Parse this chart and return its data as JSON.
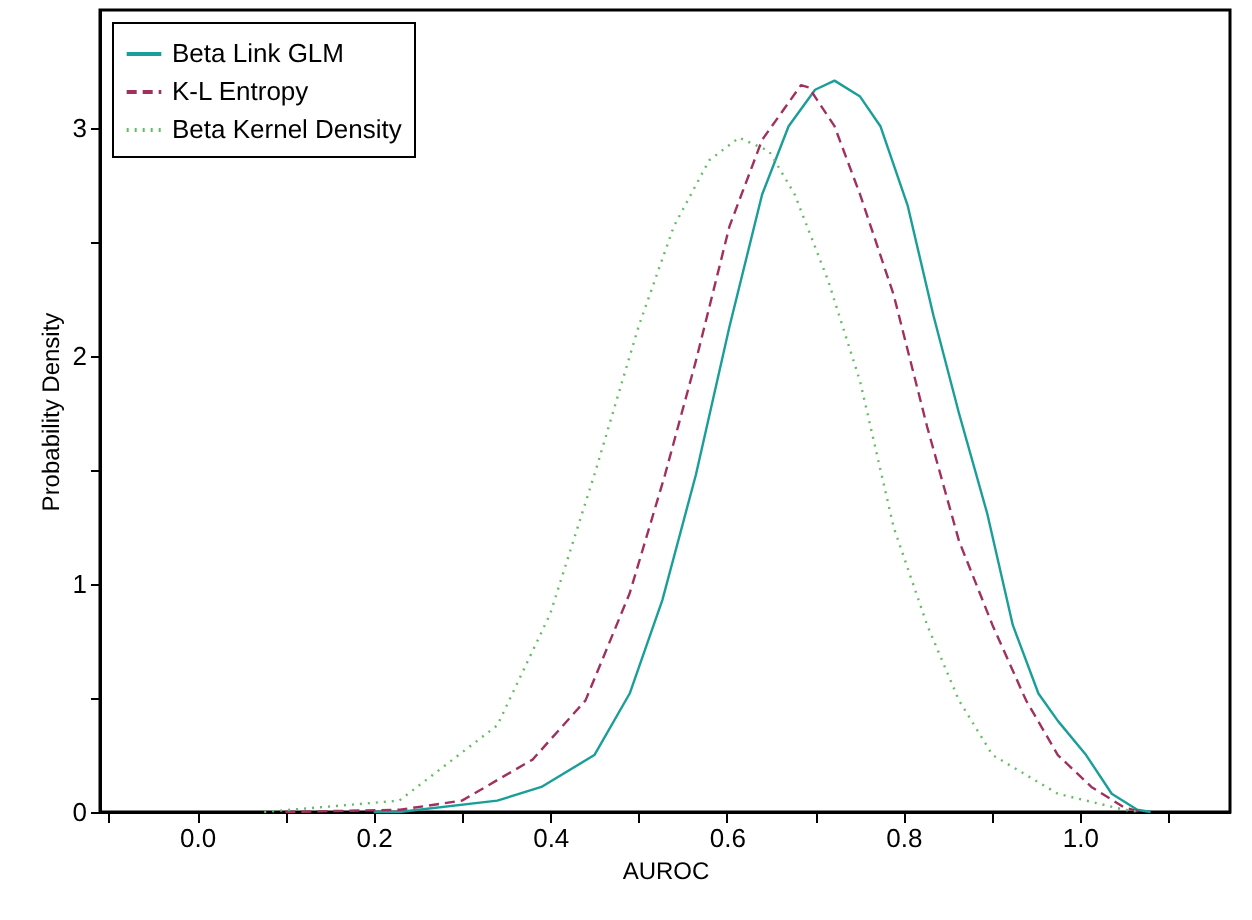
{
  "chart_data": {
    "type": "line",
    "xlabel": "AUROC",
    "ylabel": "Probability Density",
    "xlim": [
      -0.11,
      1.17
    ],
    "ylim": [
      0,
      3.52
    ],
    "xticks": [
      {
        "value": -0.1,
        "label": null
      },
      {
        "value": 0,
        "label": "0.0"
      },
      {
        "value": 0.1,
        "label": null
      },
      {
        "value": 0.2,
        "label": "0.2"
      },
      {
        "value": 0.3,
        "label": null
      },
      {
        "value": 0.4,
        "label": "0.4"
      },
      {
        "value": 0.5,
        "label": null
      },
      {
        "value": 0.6,
        "label": "0.6"
      },
      {
        "value": 0.7,
        "label": null
      },
      {
        "value": 0.8,
        "label": "0.8"
      },
      {
        "value": 0.9,
        "label": null
      },
      {
        "value": 1,
        "label": "1.0"
      },
      {
        "value": 1.1,
        "label": null
      }
    ],
    "yticks": [
      {
        "value": 0,
        "label": "0"
      },
      {
        "value": 0.5,
        "label": null
      },
      {
        "value": 1,
        "label": "1"
      },
      {
        "value": 1.5,
        "label": null
      },
      {
        "value": 2,
        "label": "2"
      },
      {
        "value": 2.5,
        "label": null
      },
      {
        "value": 3,
        "label": "3"
      }
    ],
    "grid": false,
    "legend": "top left",
    "marker": "none",
    "series": [
      {
        "name": "Beta Link GLM",
        "color": "#1a9e9a",
        "line_style": "solid",
        "x": [
          0.2,
          0.229,
          0.34,
          0.39,
          0.45,
          0.49,
          0.527,
          0.565,
          0.603,
          0.64,
          0.67,
          0.7,
          0.722,
          0.751,
          0.774,
          0.805,
          0.834,
          0.863,
          0.895,
          0.924,
          0.953,
          0.975,
          1.007,
          1.036,
          1.065,
          1.08
        ],
        "values": [
          0,
          0,
          0.05,
          0.11,
          0.25,
          0.52,
          0.93,
          1.48,
          2.13,
          2.71,
          3.01,
          3.17,
          3.21,
          3.14,
          3.01,
          2.66,
          2.18,
          1.75,
          1.31,
          0.82,
          0.52,
          0.4,
          0.25,
          0.08,
          0.01,
          0
        ]
      },
      {
        "name": "K-L Entropy",
        "color": "#a0305e",
        "line_style": "dashed",
        "x": [
          0.1,
          0.23,
          0.3,
          0.38,
          0.44,
          0.49,
          0.53,
          0.565,
          0.603,
          0.64,
          0.684,
          0.693,
          0.722,
          0.751,
          0.789,
          0.827,
          0.863,
          0.901,
          0.939,
          0.975,
          1.013,
          1.05,
          1.07
        ],
        "values": [
          0,
          0.01,
          0.05,
          0.23,
          0.49,
          0.96,
          1.48,
          1.98,
          2.57,
          2.95,
          3.19,
          3.18,
          3.01,
          2.71,
          2.27,
          1.69,
          1.19,
          0.82,
          0.49,
          0.25,
          0.11,
          0.02,
          0
        ]
      },
      {
        "name": "Beta Kernel Density",
        "color": "#66bb66",
        "line_style": "dotted",
        "x": [
          0.076,
          0.229,
          0.34,
          0.4,
          0.45,
          0.5,
          0.54,
          0.58,
          0.614,
          0.648,
          0.677,
          0.715,
          0.751,
          0.789,
          0.827,
          0.863,
          0.901,
          0.975,
          1.05,
          1.07
        ],
        "values": [
          0,
          0.05,
          0.38,
          0.87,
          1.48,
          2.13,
          2.57,
          2.86,
          2.96,
          2.9,
          2.71,
          2.33,
          1.89,
          1.25,
          0.82,
          0.49,
          0.25,
          0.08,
          0.01,
          0
        ]
      }
    ]
  }
}
